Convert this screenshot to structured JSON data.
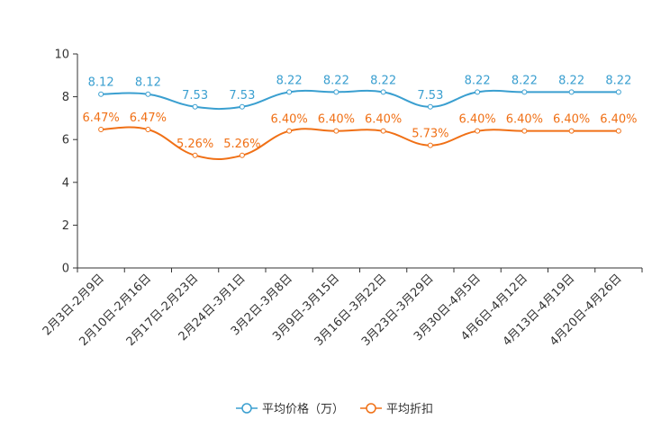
{
  "chart_data": {
    "type": "line",
    "categories": [
      "2月3日-2月9日",
      "2月10日-2月16日",
      "2月17日-2月23日",
      "2月24日-3月1日",
      "3月2日-3月8日",
      "3月9日-3月15日",
      "3月16日-3月22日",
      "3月23日-3月29日",
      "3月30日-4月5日",
      "4月6日-4月12日",
      "4月13日-4月19日",
      "4月20日-4月26日"
    ],
    "yticks": [
      "0",
      "2",
      "4",
      "6",
      "8",
      "10"
    ],
    "ylim": [
      0,
      10
    ],
    "series": [
      {
        "name": "平均价格（万）",
        "color": "#3a9fd0",
        "values": [
          8.12,
          8.12,
          7.53,
          7.53,
          8.22,
          8.22,
          8.22,
          7.53,
          8.22,
          8.22,
          8.22,
          8.22
        ],
        "labels": [
          "8.12",
          "8.12",
          "7.53",
          "7.53",
          "8.22",
          "8.22",
          "8.22",
          "7.53",
          "8.22",
          "8.22",
          "8.22",
          "8.22"
        ]
      },
      {
        "name": "平均折扣",
        "color": "#f07016",
        "values": [
          6.47,
          6.47,
          5.26,
          5.26,
          6.4,
          6.4,
          6.4,
          5.73,
          6.4,
          6.4,
          6.4,
          6.4
        ],
        "labels": [
          "6.47%",
          "6.47%",
          "5.26%",
          "5.26%",
          "6.40%",
          "6.40%",
          "6.40%",
          "5.73%",
          "6.40%",
          "6.40%",
          "6.40%",
          "6.40%"
        ]
      }
    ],
    "legend_position": "bottom-center"
  }
}
